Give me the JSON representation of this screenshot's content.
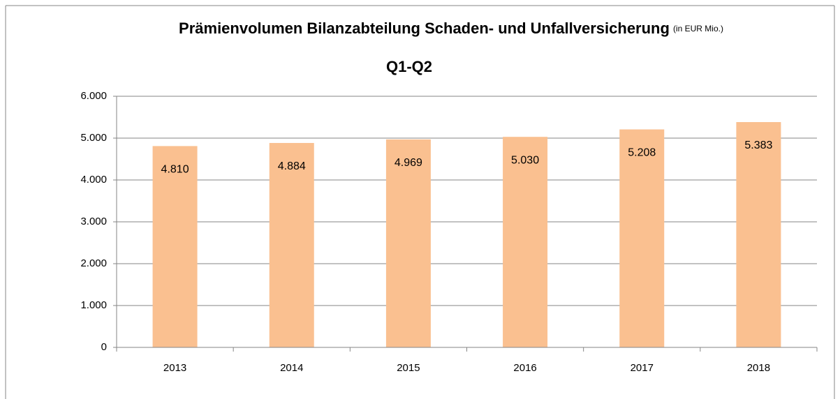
{
  "chart_data": {
    "type": "bar",
    "title": "Prämienvolumen Bilanzabteilung Schaden- und Unfallversicherung",
    "title_note": "(in EUR Mio.)",
    "subtitle": "Q1-Q2",
    "categories": [
      "2013",
      "2014",
      "2015",
      "2016",
      "2017",
      "2018"
    ],
    "values": [
      4810,
      4884,
      4969,
      5030,
      5208,
      5383
    ],
    "value_labels": [
      "4.810",
      "4.884",
      "4.969",
      "5.030",
      "5.208",
      "5.383"
    ],
    "color": "#fac090",
    "ylim": [
      0,
      6000
    ],
    "yticks": [
      0,
      {
        "value": 1000,
        "label": "1.000"
      },
      {
        "value": 2000,
        "label": "2.000"
      },
      {
        "value": 3000,
        "label": "3.000"
      },
      {
        "value": 4000,
        "label": "4.000"
      },
      {
        "value": 5000,
        "label": "5.000"
      },
      {
        "value": 6000,
        "label": "6.000"
      }
    ],
    "grid": true
  }
}
